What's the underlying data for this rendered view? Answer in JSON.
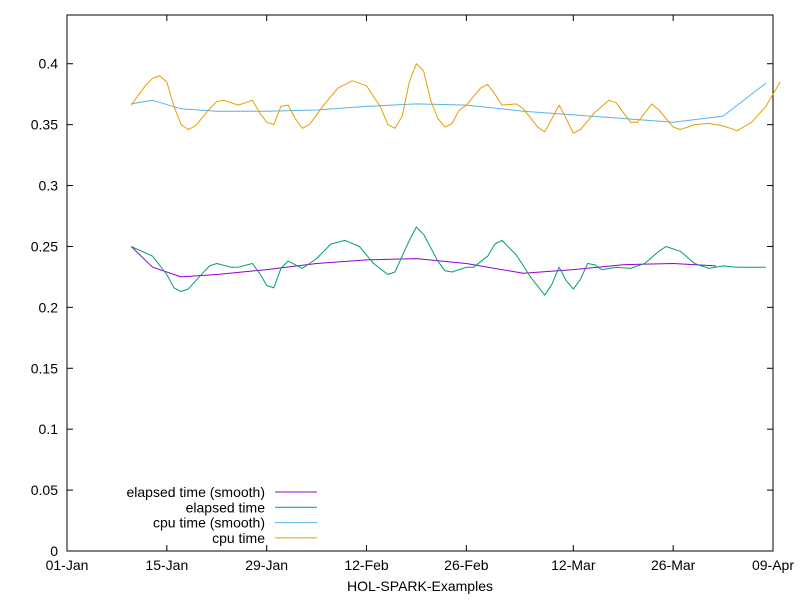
{
  "chart_data": {
    "type": "line",
    "title": "",
    "xlabel": "HOL-SPARK-Examples",
    "ylabel": "",
    "x_range": [
      "2024-01-01",
      "2024-04-09"
    ],
    "ylim": [
      0,
      0.44
    ],
    "x_ticks": [
      {
        "date": "2024-01-01",
        "label": "01-Jan"
      },
      {
        "date": "2024-01-15",
        "label": "15-Jan"
      },
      {
        "date": "2024-01-29",
        "label": "29-Jan"
      },
      {
        "date": "2024-02-12",
        "label": "12-Feb"
      },
      {
        "date": "2024-02-26",
        "label": "26-Feb"
      },
      {
        "date": "2024-03-12",
        "label": "12-Mar"
      },
      {
        "date": "2024-03-26",
        "label": "26-Mar"
      },
      {
        "date": "2024-04-09",
        "label": "09-Apr"
      }
    ],
    "y_ticks": [
      {
        "value": 0,
        "label": "0"
      },
      {
        "value": 0.05,
        "label": "0.05"
      },
      {
        "value": 0.1,
        "label": "0.1"
      },
      {
        "value": 0.15,
        "label": "0.15"
      },
      {
        "value": 0.2,
        "label": "0.2"
      },
      {
        "value": 0.25,
        "label": "0.25"
      },
      {
        "value": 0.3,
        "label": "0.3"
      },
      {
        "value": 0.35,
        "label": "0.35"
      },
      {
        "value": 0.4,
        "label": "0.4"
      }
    ],
    "grid": false,
    "legend_position": "bottom-left",
    "series": [
      {
        "name": "elapsed time (smooth)",
        "color": "#9400d3",
        "points": [
          [
            "2024-01-10",
            0.25
          ],
          [
            "2024-01-13",
            0.233
          ],
          [
            "2024-01-17",
            0.225
          ],
          [
            "2024-01-22",
            0.227
          ],
          [
            "2024-01-29",
            0.231
          ],
          [
            "2024-02-05",
            0.236
          ],
          [
            "2024-02-12",
            0.239
          ],
          [
            "2024-02-19",
            0.24
          ],
          [
            "2024-02-26",
            0.236
          ],
          [
            "2024-03-05",
            0.228
          ],
          [
            "2024-03-12",
            0.231
          ],
          [
            "2024-03-19",
            0.235
          ],
          [
            "2024-03-26",
            0.236
          ],
          [
            "2024-04-01",
            0.234
          ]
        ]
      },
      {
        "name": "elapsed time",
        "color": "#009e73",
        "points": [
          [
            "2024-01-10",
            0.25
          ],
          [
            "2024-01-13",
            0.242
          ],
          [
            "2024-01-15",
            0.227
          ],
          [
            "2024-01-16",
            0.216
          ],
          [
            "2024-01-17",
            0.213
          ],
          [
            "2024-01-18",
            0.215
          ],
          [
            "2024-01-20",
            0.228
          ],
          [
            "2024-01-21",
            0.234
          ],
          [
            "2024-01-22",
            0.236
          ],
          [
            "2024-01-24",
            0.233
          ],
          [
            "2024-01-25",
            0.233
          ],
          [
            "2024-01-27",
            0.236
          ],
          [
            "2024-01-28",
            0.228
          ],
          [
            "2024-01-29",
            0.218
          ],
          [
            "2024-01-30",
            0.216
          ],
          [
            "2024-01-31",
            0.232
          ],
          [
            "2024-02-01",
            0.238
          ],
          [
            "2024-02-02",
            0.235
          ],
          [
            "2024-02-03",
            0.232
          ],
          [
            "2024-02-05",
            0.24
          ],
          [
            "2024-02-07",
            0.252
          ],
          [
            "2024-02-09",
            0.255
          ],
          [
            "2024-02-11",
            0.25
          ],
          [
            "2024-02-13",
            0.236
          ],
          [
            "2024-02-15",
            0.227
          ],
          [
            "2024-02-16",
            0.229
          ],
          [
            "2024-02-18",
            0.255
          ],
          [
            "2024-02-19",
            0.266
          ],
          [
            "2024-02-20",
            0.26
          ],
          [
            "2024-02-22",
            0.238
          ],
          [
            "2024-02-23",
            0.23
          ],
          [
            "2024-02-24",
            0.229
          ],
          [
            "2024-02-26",
            0.233
          ],
          [
            "2024-02-27",
            0.233
          ],
          [
            "2024-02-29",
            0.242
          ],
          [
            "2024-03-01",
            0.252
          ],
          [
            "2024-03-02",
            0.255
          ],
          [
            "2024-03-04",
            0.243
          ],
          [
            "2024-03-06",
            0.225
          ],
          [
            "2024-03-08",
            0.21
          ],
          [
            "2024-03-09",
            0.219
          ],
          [
            "2024-03-10",
            0.233
          ],
          [
            "2024-03-11",
            0.222
          ],
          [
            "2024-03-12",
            0.215
          ],
          [
            "2024-03-13",
            0.223
          ],
          [
            "2024-03-14",
            0.236
          ],
          [
            "2024-03-15",
            0.235
          ],
          [
            "2024-03-16",
            0.231
          ],
          [
            "2024-03-18",
            0.233
          ],
          [
            "2024-03-20",
            0.232
          ],
          [
            "2024-03-22",
            0.236
          ],
          [
            "2024-03-24",
            0.246
          ],
          [
            "2024-03-25",
            0.25
          ],
          [
            "2024-03-27",
            0.246
          ],
          [
            "2024-03-29",
            0.236
          ],
          [
            "2024-03-31",
            0.232
          ],
          [
            "2024-04-02",
            0.234
          ],
          [
            "2024-04-04",
            0.233
          ],
          [
            "2024-04-06",
            0.233
          ],
          [
            "2024-04-08",
            0.233
          ]
        ]
      },
      {
        "name": "cpu time (smooth)",
        "color": "#56b4e9",
        "points": [
          [
            "2024-01-10",
            0.367
          ],
          [
            "2024-01-13",
            0.37
          ],
          [
            "2024-01-17",
            0.363
          ],
          [
            "2024-01-22",
            0.361
          ],
          [
            "2024-01-29",
            0.361
          ],
          [
            "2024-02-05",
            0.362
          ],
          [
            "2024-02-12",
            0.365
          ],
          [
            "2024-02-19",
            0.367
          ],
          [
            "2024-02-26",
            0.366
          ],
          [
            "2024-03-05",
            0.361
          ],
          [
            "2024-03-12",
            0.358
          ],
          [
            "2024-03-19",
            0.355
          ],
          [
            "2024-03-26",
            0.352
          ],
          [
            "2024-04-02",
            0.357
          ],
          [
            "2024-04-08",
            0.384
          ]
        ]
      },
      {
        "name": "cpu time",
        "color": "#e69f00",
        "points": [
          [
            "2024-01-10",
            0.366
          ],
          [
            "2024-01-12",
            0.382
          ],
          [
            "2024-01-13",
            0.388
          ],
          [
            "2024-01-14",
            0.39
          ],
          [
            "2024-01-15",
            0.385
          ],
          [
            "2024-01-16",
            0.365
          ],
          [
            "2024-01-17",
            0.35
          ],
          [
            "2024-01-18",
            0.346
          ],
          [
            "2024-01-19",
            0.349
          ],
          [
            "2024-01-21",
            0.363
          ],
          [
            "2024-01-22",
            0.369
          ],
          [
            "2024-01-23",
            0.37
          ],
          [
            "2024-01-25",
            0.366
          ],
          [
            "2024-01-27",
            0.37
          ],
          [
            "2024-01-28",
            0.36
          ],
          [
            "2024-01-29",
            0.352
          ],
          [
            "2024-01-30",
            0.35
          ],
          [
            "2024-01-31",
            0.365
          ],
          [
            "2024-02-01",
            0.366
          ],
          [
            "2024-02-02",
            0.355
          ],
          [
            "2024-02-03",
            0.347
          ],
          [
            "2024-02-04",
            0.35
          ],
          [
            "2024-02-06",
            0.366
          ],
          [
            "2024-02-08",
            0.38
          ],
          [
            "2024-02-10",
            0.386
          ],
          [
            "2024-02-12",
            0.382
          ],
          [
            "2024-02-14",
            0.364
          ],
          [
            "2024-02-15",
            0.35
          ],
          [
            "2024-02-16",
            0.347
          ],
          [
            "2024-02-17",
            0.357
          ],
          [
            "2024-02-18",
            0.385
          ],
          [
            "2024-02-19",
            0.4
          ],
          [
            "2024-02-20",
            0.394
          ],
          [
            "2024-02-21",
            0.37
          ],
          [
            "2024-02-22",
            0.355
          ],
          [
            "2024-02-23",
            0.348
          ],
          [
            "2024-02-24",
            0.351
          ],
          [
            "2024-02-25",
            0.362
          ],
          [
            "2024-02-26",
            0.366
          ],
          [
            "2024-02-28",
            0.38
          ],
          [
            "2024-02-29",
            0.383
          ],
          [
            "2024-03-01",
            0.375
          ],
          [
            "2024-03-02",
            0.366
          ],
          [
            "2024-03-04",
            0.367
          ],
          [
            "2024-03-05",
            0.363
          ],
          [
            "2024-03-07",
            0.348
          ],
          [
            "2024-03-08",
            0.344
          ],
          [
            "2024-03-10",
            0.366
          ],
          [
            "2024-03-11",
            0.355
          ],
          [
            "2024-03-12",
            0.343
          ],
          [
            "2024-03-13",
            0.346
          ],
          [
            "2024-03-15",
            0.36
          ],
          [
            "2024-03-17",
            0.37
          ],
          [
            "2024-03-18",
            0.368
          ],
          [
            "2024-03-20",
            0.352
          ],
          [
            "2024-03-21",
            0.352
          ],
          [
            "2024-03-23",
            0.367
          ],
          [
            "2024-03-24",
            0.362
          ],
          [
            "2024-03-26",
            0.348
          ],
          [
            "2024-03-27",
            0.346
          ],
          [
            "2024-03-29",
            0.35
          ],
          [
            "2024-03-31",
            0.351
          ],
          [
            "2024-04-02",
            0.349
          ],
          [
            "2024-04-04",
            0.345
          ],
          [
            "2024-04-06",
            0.352
          ],
          [
            "2024-04-08",
            0.365
          ],
          [
            "2024-04-10",
            0.385
          ]
        ]
      }
    ]
  }
}
